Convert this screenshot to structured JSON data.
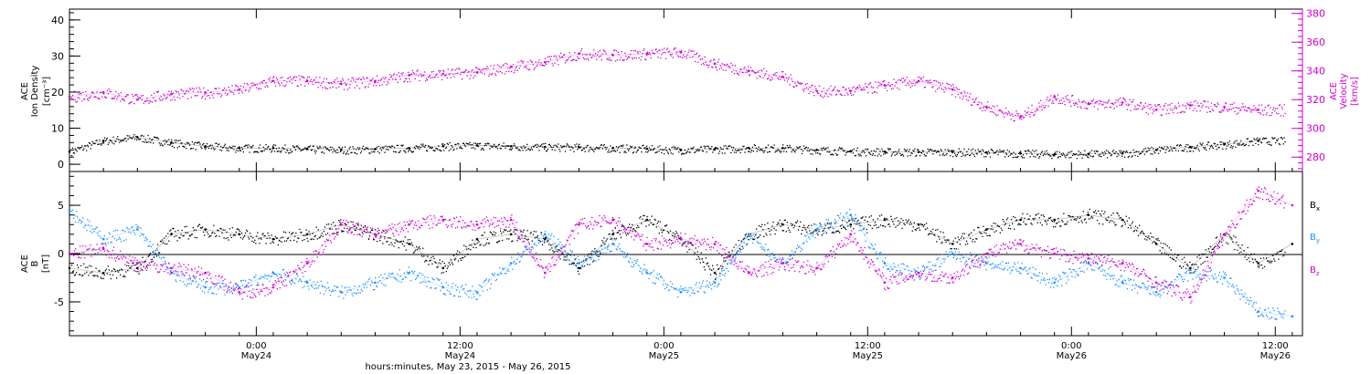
{
  "page": {
    "xlabel": "hours:minutes, May 23, 2015 - May 26, 2015",
    "x_ticks": [
      {
        "time": "0:00",
        "date": "May24",
        "hours": 24
      },
      {
        "time": "12:00",
        "date": "May24",
        "hours": 36
      },
      {
        "time": "0:00",
        "date": "May25",
        "hours": 48
      },
      {
        "time": "12:00",
        "date": "May25",
        "hours": 60
      },
      {
        "time": "0:00",
        "date": "May26",
        "hours": 72
      },
      {
        "time": "12:00",
        "date": "May26",
        "hours": 84
      }
    ],
    "x_range_hours": [
      13.0,
      85.6
    ]
  },
  "chart_data": [
    {
      "type": "scatter",
      "panel": "plasma",
      "ylabel_left": [
        "ACE",
        "Ion Density",
        "[cm⁻³]"
      ],
      "ylabel_right": [
        "ACE",
        "Velocity",
        "[km/s]"
      ],
      "ylim_left": [
        -2,
        43
      ],
      "yticks_left": [
        0,
        10,
        20,
        30,
        40
      ],
      "ylim_right": [
        270,
        383
      ],
      "yticks_right": [
        280,
        300,
        320,
        340,
        360,
        380
      ],
      "colors": {
        "density": "#000000",
        "velocity": "#cc00cc"
      },
      "series": [
        {
          "key": "density",
          "axis": "left",
          "x_hours": [
            13,
            15,
            17,
            19,
            21,
            23,
            25,
            27,
            29,
            31,
            33,
            35,
            37,
            39,
            41,
            43,
            45,
            47,
            49,
            51,
            53,
            55,
            57,
            59,
            61,
            63,
            65,
            67,
            69,
            71,
            73,
            75,
            77,
            79,
            81,
            83
          ],
          "values": [
            3.5,
            6.5,
            7.5,
            6,
            5,
            4.5,
            4.5,
            4.2,
            4.0,
            4.2,
            4.5,
            5.0,
            5.2,
            5.0,
            4.8,
            4.7,
            4.5,
            4.3,
            4.0,
            4.2,
            4.5,
            4.5,
            4.0,
            3.6,
            3.5,
            3.4,
            3.4,
            3.3,
            3.0,
            2.8,
            2.9,
            3.0,
            4.0,
            4.8,
            5.5,
            6.5
          ]
        },
        {
          "key": "velocity",
          "axis": "right",
          "x_hours": [
            13,
            15,
            17,
            19,
            21,
            23,
            25,
            27,
            29,
            31,
            33,
            35,
            37,
            39,
            41,
            43,
            45,
            47,
            49,
            51,
            53,
            55,
            57,
            59,
            61,
            63,
            65,
            67,
            69,
            71,
            73,
            75,
            77,
            79,
            81,
            83
          ],
          "values": [
            322,
            325,
            320,
            324,
            325,
            327,
            333,
            333,
            331,
            333,
            337,
            338,
            339,
            343,
            346,
            352,
            351,
            352,
            353,
            345,
            340,
            336,
            326,
            326,
            330,
            333,
            327,
            315,
            308,
            322,
            317,
            318,
            313,
            316,
            315,
            313
          ]
        }
      ]
    },
    {
      "type": "scatter",
      "panel": "magnetic",
      "ylabel": [
        "ACE",
        "B",
        "[nT]"
      ],
      "ylim": [
        -8.5,
        8.5
      ],
      "yticks": [
        -5,
        0,
        5
      ],
      "zero_line": true,
      "legend": [
        {
          "label": "B",
          "sub": "x",
          "color": "#000000"
        },
        {
          "label": "B",
          "sub": "y",
          "color": "#1e90ff"
        },
        {
          "label": "B",
          "sub": "z",
          "color": "#cc00cc"
        }
      ],
      "series": [
        {
          "key": "Bx",
          "x_hours": [
            13,
            15,
            17,
            19,
            21,
            23,
            25,
            27,
            29,
            31,
            33,
            35,
            37,
            39,
            41,
            43,
            45,
            47,
            49,
            51,
            53,
            55,
            57,
            59,
            61,
            63,
            65,
            67,
            69,
            71,
            73,
            75,
            77,
            79,
            81,
            83,
            85
          ],
          "values": [
            -1.5,
            -2,
            -1.5,
            2,
            2.5,
            2,
            1.5,
            2,
            3,
            2,
            1,
            -1.5,
            1.5,
            2,
            1.5,
            -1.5,
            2,
            3.5,
            1.5,
            -2,
            2,
            3,
            2.5,
            3,
            3.5,
            3,
            1,
            2.5,
            3.5,
            3.5,
            4,
            3.5,
            1,
            -1.5,
            2,
            -1,
            1
          ]
        },
        {
          "key": "By",
          "x_hours": [
            13,
            15,
            17,
            19,
            21,
            23,
            25,
            27,
            29,
            31,
            33,
            35,
            37,
            39,
            41,
            43,
            45,
            47,
            49,
            51,
            53,
            55,
            57,
            59,
            61,
            63,
            65,
            67,
            69,
            71,
            73,
            75,
            77,
            79,
            81,
            83,
            85
          ],
          "values": [
            4.5,
            1.5,
            2.5,
            -2,
            -3.5,
            -3.5,
            -2,
            -3,
            -4,
            -3,
            -2,
            -3.5,
            -4,
            -1,
            2,
            -1,
            1,
            -2,
            -4,
            -3,
            2,
            -1,
            2.5,
            4,
            -1,
            -2,
            0,
            -1,
            -1.5,
            -3,
            -1,
            -3,
            -4,
            -2,
            -2.5,
            -6,
            -6.5
          ]
        },
        {
          "key": "Bz",
          "x_hours": [
            13,
            15,
            17,
            19,
            21,
            23,
            25,
            27,
            29,
            31,
            33,
            35,
            37,
            39,
            41,
            43,
            45,
            47,
            49,
            51,
            53,
            55,
            57,
            59,
            61,
            63,
            65,
            67,
            69,
            71,
            73,
            75,
            77,
            79,
            81,
            83,
            85
          ],
          "values": [
            0,
            0.5,
            -1,
            -1.5,
            -2,
            -4,
            -3.5,
            -1,
            3,
            2,
            3,
            3.5,
            3,
            3.5,
            -2,
            3,
            3.5,
            1,
            1.5,
            1,
            -2,
            -1,
            -1.5,
            2,
            -3,
            -2,
            -2.5,
            0,
            1,
            0,
            -0.5,
            -1,
            -3,
            -4.5,
            2,
            6.5,
            5
          ]
        }
      ]
    }
  ]
}
